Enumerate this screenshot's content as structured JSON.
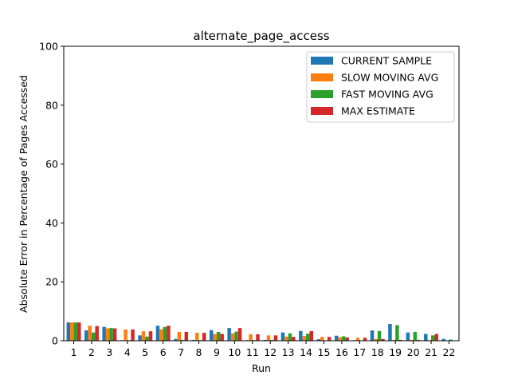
{
  "chart_data": {
    "type": "bar",
    "title": "alternate_page_access",
    "xlabel": "Run",
    "ylabel": "Absolute Error in Percentage of Pages Accessed",
    "ylim": [
      0,
      100
    ],
    "yticks": [
      0,
      20,
      40,
      60,
      80,
      100
    ],
    "categories": [
      "1",
      "2",
      "3",
      "4",
      "5",
      "6",
      "7",
      "8",
      "9",
      "10",
      "11",
      "12",
      "13",
      "14",
      "15",
      "16",
      "17",
      "18",
      "19",
      "20",
      "21",
      "22"
    ],
    "legend_position": "top-right",
    "grid": false,
    "series": [
      {
        "name": "CURRENT SAMPLE",
        "color": "#1f77b4",
        "values": [
          6.2,
          3.5,
          4.7,
          0.2,
          1.8,
          5.1,
          0.6,
          0.3,
          3.6,
          4.3,
          0.2,
          0.3,
          2.8,
          3.3,
          0.5,
          1.7,
          0.2,
          3.5,
          5.7,
          2.8,
          2.3,
          0.6
        ]
      },
      {
        "name": "SLOW MOVING AVG",
        "color": "#ff7f0e",
        "values": [
          6.2,
          5.1,
          4.2,
          3.8,
          3.2,
          3.9,
          3.0,
          2.7,
          2.3,
          2.5,
          2.2,
          1.8,
          1.4,
          1.6,
          1.3,
          1.2,
          1.0,
          0.6,
          0.3,
          0.3,
          0.2,
          0.1
        ]
      },
      {
        "name": "FAST MOVING AVG",
        "color": "#2ca02c",
        "values": [
          6.2,
          2.8,
          4.3,
          0.2,
          1.4,
          4.7,
          0.3,
          0.2,
          3.0,
          3.1,
          0.2,
          0.3,
          2.5,
          2.4,
          0.1,
          1.5,
          0.1,
          3.3,
          5.3,
          3.0,
          1.8,
          0.4
        ]
      },
      {
        "name": "MAX ESTIMATE",
        "color": "#d62728",
        "values": [
          6.2,
          5.0,
          4.2,
          3.8,
          3.2,
          5.1,
          3.0,
          2.7,
          2.3,
          4.3,
          2.2,
          1.8,
          1.3,
          3.3,
          1.3,
          1.1,
          1.0,
          0.6,
          0.3,
          0.3,
          2.3,
          0.1
        ]
      }
    ]
  }
}
